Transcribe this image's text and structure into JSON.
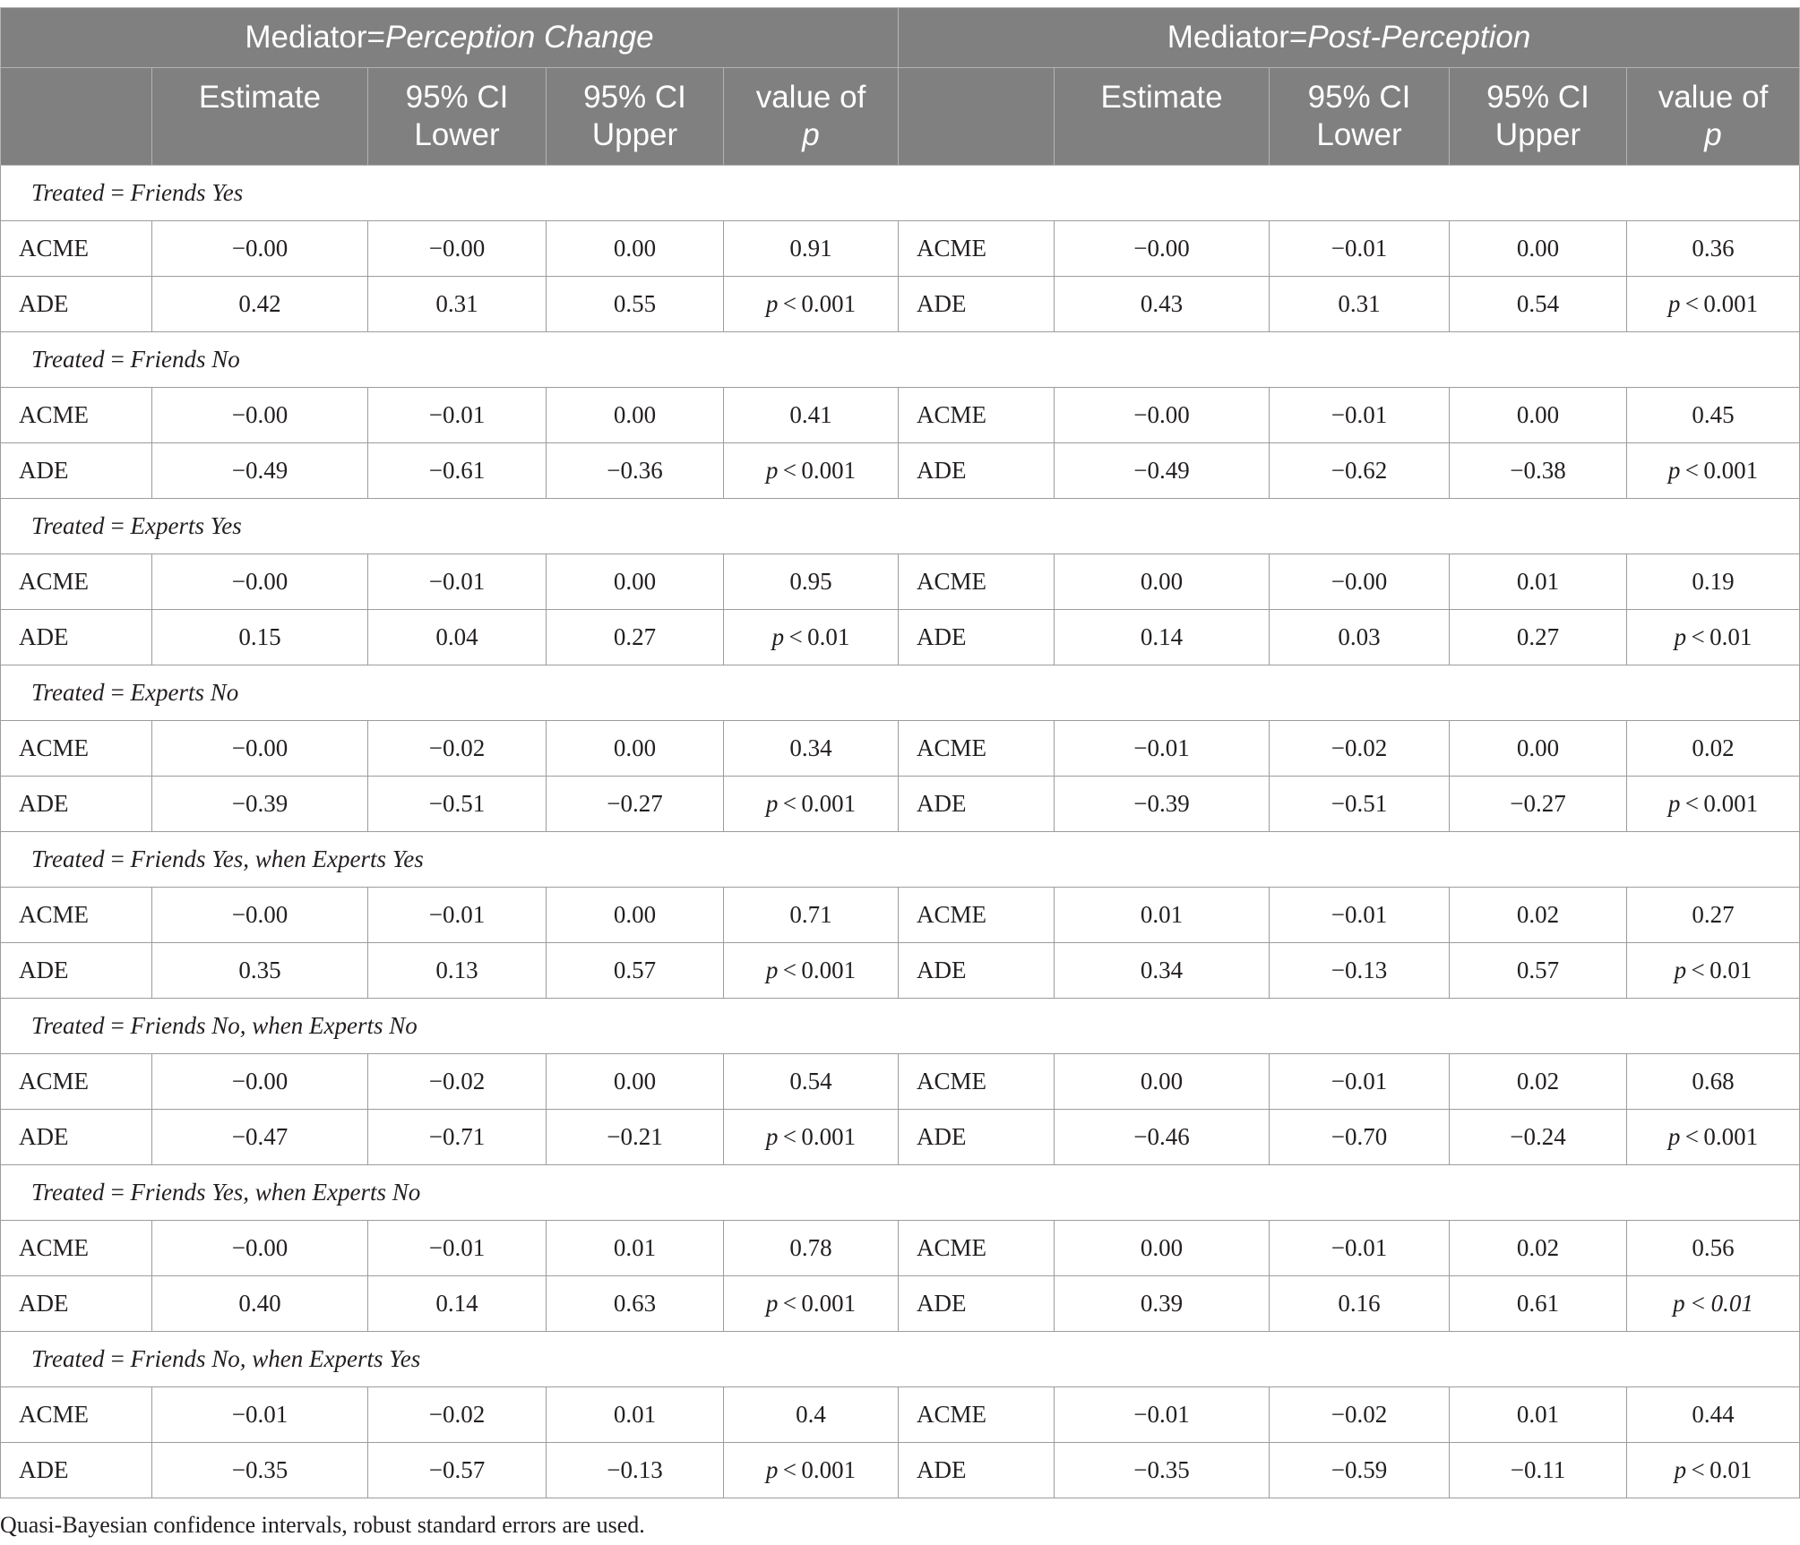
{
  "header": {
    "group_left_prefix": "Mediator=",
    "group_left_name": "Perception Change",
    "group_right_prefix": "Mediator=",
    "group_right_name": "Post-Perception",
    "columns": {
      "estimate": "Estimate",
      "ci_lower_1": "95% CI",
      "ci_lower_2": "Lower",
      "ci_upper_1": "95% CI",
      "ci_upper_2": "Upper",
      "pvalue_1": "value of",
      "pvalue_2": "p"
    }
  },
  "groups": [
    {
      "label": "Treated = Friends Yes",
      "rows": [
        {
          "term": "ACME",
          "est": "−0.00",
          "lo": "−0.00",
          "hi": "0.00",
          "p": "0.91",
          "term2": "ACME",
          "est2": "−0.00",
          "lo2": "−0.01",
          "hi2": "0.00",
          "p2": "0.36"
        },
        {
          "term": "ADE",
          "est": "0.42",
          "lo": "0.31",
          "hi": "0.55",
          "p": "< 0.001",
          "pi": true,
          "term2": "ADE",
          "est2": "0.43",
          "lo2": "0.31",
          "hi2": "0.54",
          "p2": "< 0.001",
          "pi2": true
        }
      ]
    },
    {
      "label": "Treated = Friends No",
      "rows": [
        {
          "term": "ACME",
          "est": "−0.00",
          "lo": "−0.01",
          "hi": "0.00",
          "p": "0.41",
          "term2": "ACME",
          "est2": "−0.00",
          "lo2": "−0.01",
          "hi2": "0.00",
          "p2": "0.45"
        },
        {
          "term": "ADE",
          "est": "−0.49",
          "lo": "−0.61",
          "hi": "−0.36",
          "p": "< 0.001",
          "pi": true,
          "term2": "ADE",
          "est2": "−0.49",
          "lo2": "−0.62",
          "hi2": "−0.38",
          "p2": "< 0.001",
          "pi2": true
        }
      ]
    },
    {
      "label": "Treated = Experts Yes",
      "rows": [
        {
          "term": "ACME",
          "est": "−0.00",
          "lo": "−0.01",
          "hi": "0.00",
          "p": "0.95",
          "term2": "ACME",
          "est2": "0.00",
          "lo2": "−0.00",
          "hi2": "0.01",
          "p2": "0.19"
        },
        {
          "term": "ADE",
          "est": "0.15",
          "lo": "0.04",
          "hi": "0.27",
          "p": "< 0.01",
          "pi": true,
          "term2": "ADE",
          "est2": "0.14",
          "lo2": "0.03",
          "hi2": "0.27",
          "p2": "< 0.01",
          "pi2": true
        }
      ]
    },
    {
      "label": "Treated = Experts No",
      "rows": [
        {
          "term": "ACME",
          "est": "−0.00",
          "lo": "−0.02",
          "hi": "0.00",
          "p": "0.34",
          "term2": "ACME",
          "est2": "−0.01",
          "lo2": "−0.02",
          "hi2": "0.00",
          "p2": "0.02"
        },
        {
          "term": "ADE",
          "est": "−0.39",
          "lo": "−0.51",
          "hi": "−0.27",
          "p": "< 0.001",
          "pi": true,
          "term2": "ADE",
          "est2": "−0.39",
          "lo2": "−0.51",
          "hi2": "−0.27",
          "p2": "< 0.001",
          "pi2": true
        }
      ]
    },
    {
      "label": "Treated = Friends Yes, when Experts Yes",
      "rows": [
        {
          "term": "ACME",
          "est": "−0.00",
          "lo": "−0.01",
          "hi": "0.00",
          "p": "0.71",
          "term2": "ACME",
          "est2": "0.01",
          "lo2": "−0.01",
          "hi2": "0.02",
          "p2": "0.27"
        },
        {
          "term": "ADE",
          "est": "0.35",
          "lo": "0.13",
          "hi": "0.57",
          "p": "< 0.001",
          "pi": true,
          "term2": "ADE",
          "est2": "0.34",
          "lo2": "−0.13",
          "hi2": "0.57",
          "p2": "< 0.01",
          "pi2": true
        }
      ]
    },
    {
      "label": "Treated = Friends No, when Experts No",
      "rows": [
        {
          "term": "ACME",
          "est": "−0.00",
          "lo": "−0.02",
          "hi": "0.00",
          "p": "0.54",
          "term2": "ACME",
          "est2": "0.00",
          "lo2": "−0.01",
          "hi2": "0.02",
          "p2": "0.68"
        },
        {
          "term": "ADE",
          "est": "−0.47",
          "lo": "−0.71",
          "hi": "−0.21",
          "p": "< 0.001",
          "pi": true,
          "term2": "ADE",
          "est2": "−0.46",
          "lo2": "−0.70",
          "hi2": "−0.24",
          "p2": "< 0.001",
          "pi2": true
        }
      ]
    },
    {
      "label": "Treated = Friends Yes, when Experts No",
      "rows": [
        {
          "term": "ACME",
          "est": "−0.00",
          "lo": "−0.01",
          "hi": "0.01",
          "p": "0.78",
          "term2": "ACME",
          "est2": "0.00",
          "lo2": "−0.01",
          "hi2": "0.02",
          "p2": "0.56"
        },
        {
          "term": "ADE",
          "est": "0.40",
          "lo": "0.14",
          "hi": "0.63",
          "p": "< 0.001",
          "pi": true,
          "term2": "ADE",
          "est2": "0.39",
          "lo2": "0.16",
          "hi2": "0.61",
          "p2": "< 0.01",
          "pi2": true,
          "p2_all_italic": true
        }
      ]
    },
    {
      "label": "Treated = Friends No, when Experts Yes",
      "rows": [
        {
          "term": "ACME",
          "est": "−0.01",
          "lo": "−0.02",
          "hi": "0.01",
          "p": "0.4",
          "term2": "ACME",
          "est2": "−0.01",
          "lo2": "−0.02",
          "hi2": "0.01",
          "p2": "0.44"
        },
        {
          "term": "ADE",
          "est": "−0.35",
          "lo": "−0.57",
          "hi": "−0.13",
          "p": "< 0.001",
          "pi": true,
          "term2": "ADE",
          "est2": "−0.35",
          "lo2": "−0.59",
          "hi2": "−0.11",
          "p2": "< 0.01",
          "pi2": true
        }
      ]
    }
  ],
  "p_symbol": "p",
  "footnote": "Quasi-Bayesian confidence intervals, robust standard errors are used."
}
